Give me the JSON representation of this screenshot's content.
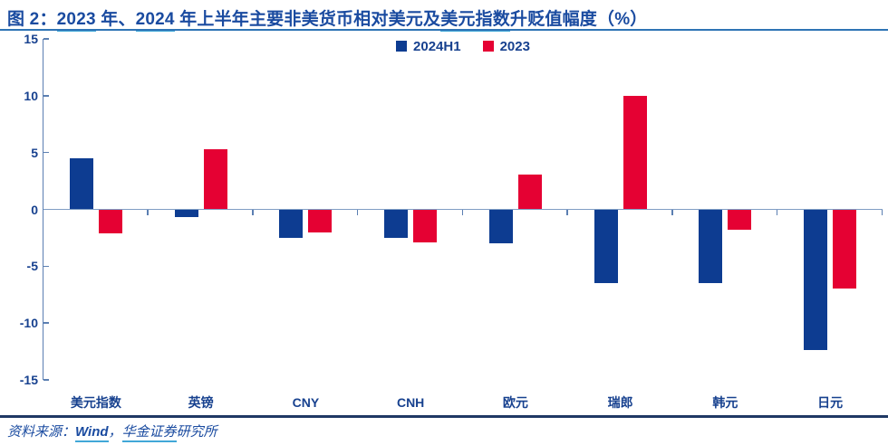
{
  "title": {
    "label": "图 2：",
    "y2023": "2023",
    "mid1": " 年、",
    "y2024": "2024",
    "mid2": " 年上半年主要非美货币相对美元及",
    "usd_index": "美元指数",
    "tail": "升贬值幅度（%）"
  },
  "chart_data": {
    "type": "bar",
    "title": "2023 年、2024 年上半年主要非美货币相对美元及美元指数升贬值幅度（%）",
    "categories": [
      "美元指数",
      "英镑",
      "CNY",
      "CNH",
      "欧元",
      "瑞郎",
      "韩元",
      "日元"
    ],
    "series": [
      {
        "name": "2024H1",
        "color": "#0D3C91",
        "values": [
          4.5,
          -0.7,
          -2.5,
          -2.5,
          -3.0,
          -6.5,
          -6.5,
          -12.4
        ]
      },
      {
        "name": "2023",
        "color": "#E50133",
        "values": [
          -2.1,
          5.3,
          -2.0,
          -2.9,
          3.1,
          10.0,
          -1.8,
          -7.0
        ]
      }
    ],
    "xlabel": "",
    "ylabel": "",
    "ylim": [
      -15,
      15
    ],
    "yticks": [
      15,
      10,
      5,
      0,
      -5,
      -10,
      -15
    ],
    "grid": false,
    "legend_position": "top-center"
  },
  "footer": {
    "prefix": "资料来源：",
    "wind": "Wind",
    "comma": "，",
    "huajin": "华金证券",
    "suffix": "研究所"
  },
  "colors": {
    "bar_blue": "#0D3C91",
    "bar_red": "#E50133",
    "axis_line": "#5B7FB2",
    "zero_line": "#7F9DC4",
    "tick_text": "#17418F",
    "title_text": "#1A4BA0",
    "link_underline": "#41A8D8",
    "divider_top": "#2E74B5",
    "divider_bottom": "#1F3864"
  }
}
